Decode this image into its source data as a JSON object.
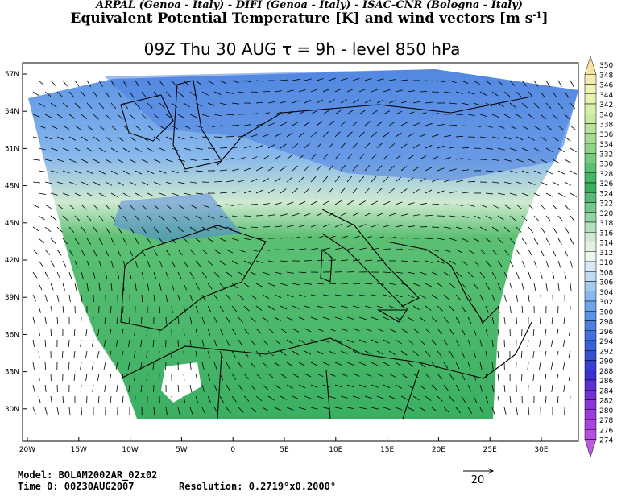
{
  "header": {
    "line1": "ARPAL (Genoa - Italy)  -  DIFI (Genoa - Italy)  -  ISAC-CNR (Bologna - Italy)",
    "line2": "Equivalent Potential Temperature [K] and wind vectors [m s",
    "line2_sup": "-1",
    "line2_end": "]",
    "subtitle": "09Z Thu 30 AUG  τ = 9h  -  level 850 hPa"
  },
  "axes": {
    "lat_labels": [
      "57N",
      "54N",
      "51N",
      "48N",
      "45N",
      "42N",
      "39N",
      "36N",
      "33N",
      "30N"
    ],
    "lon_labels": [
      "20W",
      "15W",
      "10W",
      "5W",
      "0",
      "5E",
      "10E",
      "15E",
      "20E",
      "25E",
      "30E"
    ]
  },
  "colorbar": {
    "levels": [
      350,
      348,
      346,
      344,
      342,
      340,
      338,
      336,
      334,
      332,
      330,
      328,
      326,
      324,
      322,
      320,
      318,
      316,
      314,
      312,
      310,
      308,
      306,
      304,
      302,
      300,
      298,
      296,
      294,
      292,
      290,
      288,
      286,
      284,
      282,
      280,
      278,
      276,
      274
    ],
    "colors": [
      "#f7e3a0",
      "#f3ecb0",
      "#eef3b8",
      "#e6f3b0",
      "#d9efa8",
      "#c9e9a0",
      "#b7e298",
      "#a4db90",
      "#8fd388",
      "#76ca7e",
      "#5cc073",
      "#44b866",
      "#3aaf62",
      "#55bb77",
      "#74c88c",
      "#93d4a3",
      "#b2e0ba",
      "#cfead0",
      "#e4f2e2",
      "#eef6f2",
      "#d8eaf5",
      "#bfdcf2",
      "#a3cbef",
      "#88b8ec",
      "#6ea5e8",
      "#5a92e4",
      "#4c80e0",
      "#4270dc",
      "#3a60d8",
      "#3650d4",
      "#3340d0",
      "#3a2fd0",
      "#5a2fd4",
      "#7430d6",
      "#8a35d8",
      "#9a3cdb",
      "#a845de",
      "#b450e0",
      "#bc5ae2"
    ]
  },
  "footer": {
    "model": "Model: BOLAM2002AR_02x02",
    "time": "Time 0: 00Z30AUG2007",
    "resolution": "Resolution: 0.2719°x0.2000°",
    "ref_vector": "20"
  }
}
